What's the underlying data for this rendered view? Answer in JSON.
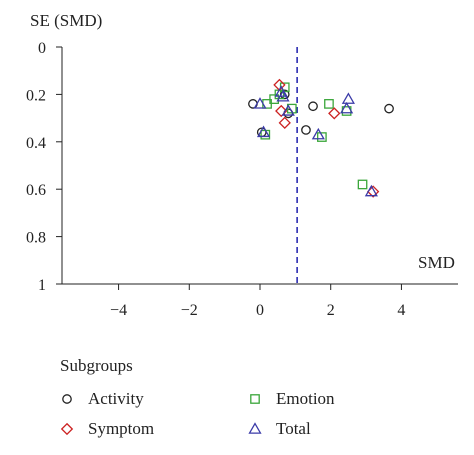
{
  "chart_data": {
    "type": "scatter",
    "title": "",
    "xlabel": "SMD",
    "ylabel": "SE (SMD)",
    "xlim": [
      -5.6,
      5.6
    ],
    "ylim": [
      0,
      1
    ],
    "y_inverted": true,
    "xticks": [
      -4,
      -2,
      0,
      2,
      4
    ],
    "xtick_labels": [
      "−4",
      "−2",
      "0",
      "2",
      "4"
    ],
    "yticks": [
      0,
      0.2,
      0.4,
      0.6,
      0.8,
      1
    ],
    "ytick_labels": [
      "0",
      "0.2",
      "0.4",
      "0.6",
      "0.8",
      "1"
    ],
    "reference_line": {
      "x": 1.05,
      "style": "dashed",
      "color": "#2b2bb0"
    },
    "grid": false,
    "legend_title": "Subgroups",
    "series": [
      {
        "name": "Activity",
        "marker": "circle",
        "color": "#222222",
        "points": [
          [
            -0.2,
            0.24
          ],
          [
            1.3,
            0.35
          ],
          [
            1.5,
            0.25
          ],
          [
            3.65,
            0.26
          ],
          [
            0.8,
            0.28
          ],
          [
            0.05,
            0.36
          ],
          [
            0.7,
            0.2
          ]
        ]
      },
      {
        "name": "Emotion",
        "marker": "square",
        "color": "#3aa63a",
        "points": [
          [
            0.2,
            0.24
          ],
          [
            0.4,
            0.22
          ],
          [
            0.55,
            0.2
          ],
          [
            0.7,
            0.17
          ],
          [
            0.9,
            0.26
          ],
          [
            1.95,
            0.24
          ],
          [
            1.75,
            0.38
          ],
          [
            2.45,
            0.27
          ],
          [
            2.9,
            0.58
          ],
          [
            0.15,
            0.37
          ]
        ]
      },
      {
        "name": "Symptom",
        "marker": "diamond",
        "color": "#cc2222",
        "points": [
          [
            0.55,
            0.16
          ],
          [
            0.6,
            0.27
          ],
          [
            0.7,
            0.32
          ],
          [
            2.1,
            0.28
          ],
          [
            3.2,
            0.61
          ]
        ]
      },
      {
        "name": "Total",
        "marker": "triangle",
        "color": "#3b3ba8",
        "points": [
          [
            0.0,
            0.24
          ],
          [
            0.6,
            0.19
          ],
          [
            0.65,
            0.21
          ],
          [
            0.8,
            0.27
          ],
          [
            1.65,
            0.37
          ],
          [
            2.45,
            0.26
          ],
          [
            2.5,
            0.22
          ],
          [
            3.15,
            0.61
          ],
          [
            0.1,
            0.36
          ]
        ]
      }
    ]
  },
  "legend": {
    "title": "Subgroups",
    "items": [
      {
        "label": "Activity",
        "marker": "circle",
        "color": "#222222"
      },
      {
        "label": "Emotion",
        "marker": "square",
        "color": "#3aa63a"
      },
      {
        "label": "Symptom",
        "marker": "diamond",
        "color": "#cc2222"
      },
      {
        "label": "Total",
        "marker": "triangle",
        "color": "#3b3ba8"
      }
    ]
  }
}
